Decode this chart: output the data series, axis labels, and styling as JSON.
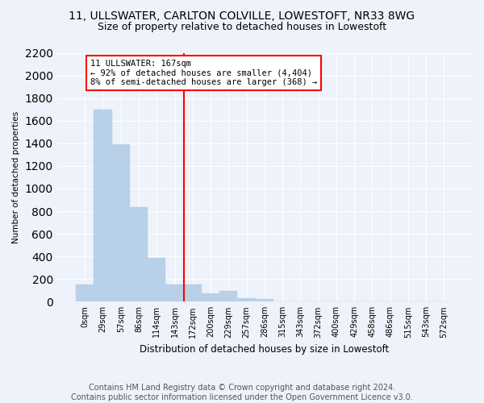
{
  "title_line1": "11, ULLSWATER, CARLTON COLVILLE, LOWESTOFT, NR33 8WG",
  "title_line2": "Size of property relative to detached houses in Lowestoft",
  "xlabel": "Distribution of detached houses by size in Lowestoft",
  "ylabel": "Number of detached properties",
  "bar_labels": [
    "0sqm",
    "29sqm",
    "57sqm",
    "86sqm",
    "114sqm",
    "143sqm",
    "172sqm",
    "200sqm",
    "229sqm",
    "257sqm",
    "286sqm",
    "315sqm",
    "343sqm",
    "372sqm",
    "400sqm",
    "429sqm",
    "458sqm",
    "486sqm",
    "515sqm",
    "543sqm",
    "572sqm"
  ],
  "bar_values": [
    150,
    1700,
    1390,
    835,
    390,
    155,
    155,
    75,
    95,
    30,
    25,
    0,
    0,
    0,
    0,
    0,
    0,
    0,
    0,
    0,
    0
  ],
  "bar_color": "#b8d0e8",
  "bar_edgecolor": "#b8d0e8",
  "vline_x": 6.0,
  "annotation_text": "11 ULLSWATER: 167sqm\n← 92% of detached houses are smaller (4,404)\n8% of semi-detached houses are larger (368) →",
  "annotation_box_color": "white",
  "annotation_box_edgecolor": "red",
  "vline_color": "red",
  "ylim": [
    0,
    2200
  ],
  "yticks": [
    0,
    200,
    400,
    600,
    800,
    1000,
    1200,
    1400,
    1600,
    1800,
    2000,
    2200
  ],
  "footnote": "Contains HM Land Registry data © Crown copyright and database right 2024.\nContains public sector information licensed under the Open Government Licence v3.0.",
  "bg_color": "#eef2fa",
  "plot_bg_color": "#eef2fa",
  "grid_color": "white",
  "title_fontsize": 10,
  "subtitle_fontsize": 9,
  "footnote_fontsize": 7
}
